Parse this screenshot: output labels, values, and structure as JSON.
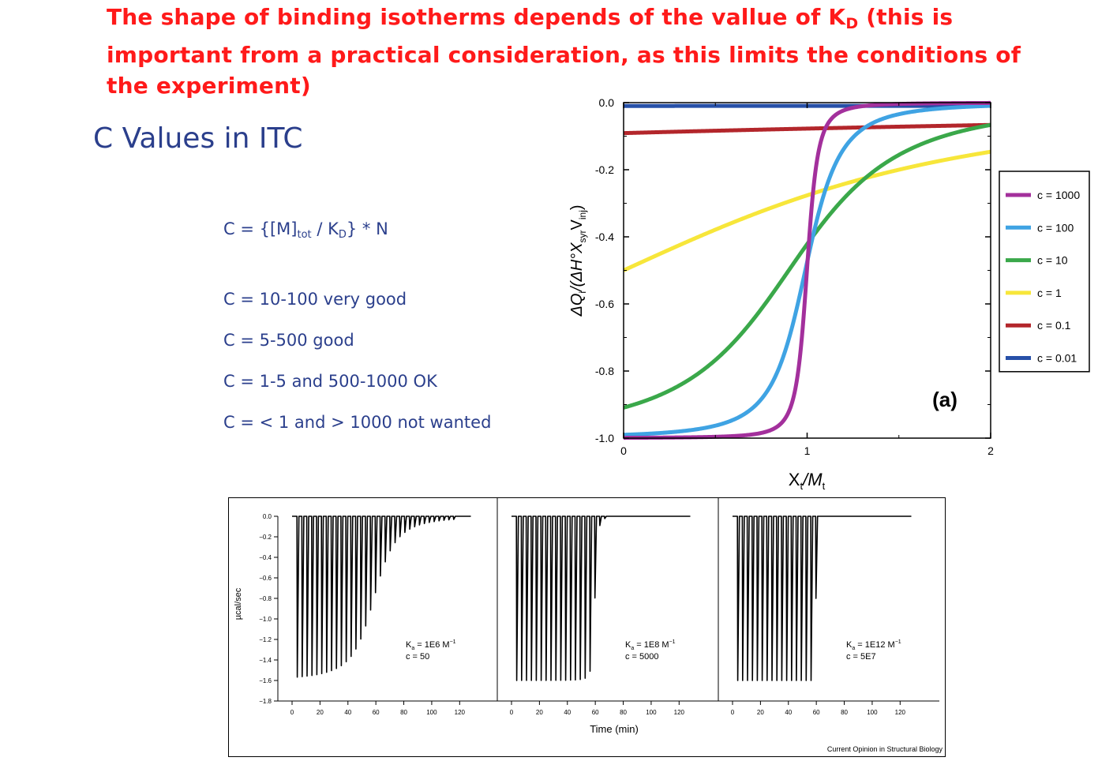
{
  "headline": {
    "before": "The shape of binding isotherms depends of the vallue of K",
    "sub": "D",
    "after": " (this is important from a practical consideration, as this limits the conditions of the experiment)"
  },
  "slide_title": "C Values in ITC",
  "formula": {
    "prefix": "C = {[M]",
    "sub1": "tot",
    "middle": " / K",
    "sub2": "D",
    "suffix": "} * N"
  },
  "c_ranges": [
    "C = 10-100 very good",
    "C = 5-500 good",
    "C = 1-5 and 500-1000 OK",
    "C = < 1 and > 1000 not wanted"
  ],
  "chart_data": [
    {
      "type": "line",
      "x_min": 0,
      "x_max": 2,
      "ylim": [
        -1.0,
        0.0
      ],
      "y_ticks": [
        "0.0",
        "-0.2",
        "-0.4",
        "-0.6",
        "-0.8",
        "-1.0"
      ],
      "x_ticks": [
        "0",
        "1",
        "2"
      ],
      "xlabel": {
        "a": "X",
        "a_sub": "t",
        "b": "/M",
        "b_sub": "t"
      },
      "ylabel": {
        "a": "ΔQ",
        "a_sub": "i",
        "b": "/(ΔH°X",
        "b_sub": "syr",
        "c": "V",
        "c_sub": "inj",
        "d": ")"
      },
      "panel_label": "(a)",
      "legend_position": "right",
      "series": [
        {
          "name": "c = 1000",
          "c": 1000,
          "color": "#a3309c"
        },
        {
          "name": "c = 100",
          "c": 100,
          "color": "#3fa3e3"
        },
        {
          "name": "c = 10",
          "c": 10,
          "color": "#3aa84a"
        },
        {
          "name": "c = 1",
          "c": 1,
          "color": "#f7e63a"
        },
        {
          "name": "c = 0.1",
          "c": 0.1,
          "color": "#b3262b"
        },
        {
          "name": "c = 0.01",
          "c": 0.01,
          "color": "#2750a8"
        }
      ]
    },
    {
      "type": "line",
      "xlim": [
        0,
        130
      ],
      "ylim": [
        -1.8,
        0.0
      ],
      "y_ticks": [
        "0.0",
        "-0.2",
        "-0.4",
        "-0.6",
        "-0.8",
        "-1.0",
        "-1.2",
        "-1.4",
        "-1.6",
        "-1.8"
      ],
      "x_ticks": [
        "0",
        "20",
        "40",
        "60",
        "80",
        "100",
        "120"
      ],
      "ylabel": "µcal/sec",
      "xlabel": "Time (min)",
      "injection_interval_min": 3.5,
      "injection_count": 33,
      "source": "Current Opinion in Structural Biology",
      "panels": [
        {
          "ka_label": "K",
          "ka_sub": "a",
          "ka_value": " = 1E6 M",
          "ka_exp": "−1",
          "c_label": "c = 50",
          "c": 50
        },
        {
          "ka_label": "K",
          "ka_sub": "a",
          "ka_value": " = 1E8 M",
          "ka_exp": "−1",
          "c_label": "c = 5000",
          "c": 5000
        },
        {
          "ka_label": "K",
          "ka_sub": "a",
          "ka_value": " = 1E12 M",
          "ka_exp": "−1",
          "c_label": "c = 5E7",
          "c": 50000000
        }
      ]
    }
  ]
}
